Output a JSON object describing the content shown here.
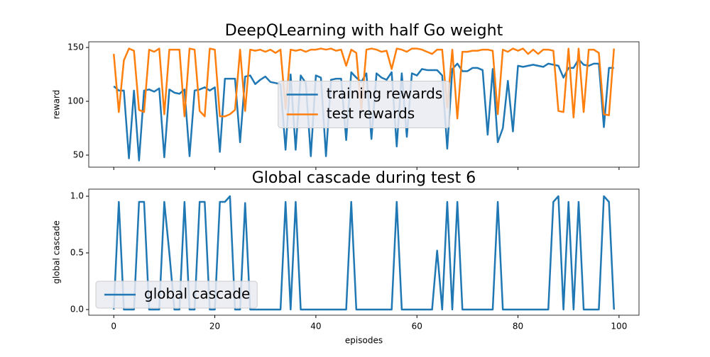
{
  "chart_data": [
    {
      "type": "line",
      "title": "DeepQLearning with half Go weight",
      "y_label": "reward",
      "x": [
        0,
        1,
        2,
        3,
        4,
        5,
        6,
        7,
        8,
        9,
        10,
        11,
        12,
        13,
        14,
        15,
        16,
        17,
        18,
        19,
        20,
        21,
        22,
        23,
        24,
        25,
        26,
        27,
        28,
        29,
        30,
        31,
        32,
        33,
        34,
        35,
        36,
        37,
        38,
        39,
        40,
        41,
        42,
        43,
        44,
        45,
        46,
        47,
        48,
        49,
        50,
        51,
        52,
        53,
        54,
        55,
        56,
        57,
        58,
        59,
        60,
        61,
        62,
        63,
        64,
        65,
        66,
        67,
        68,
        69,
        70,
        71,
        72,
        73,
        74,
        75,
        76,
        77,
        78,
        79,
        80,
        81,
        82,
        83,
        84,
        85,
        86,
        87,
        88,
        89,
        90,
        91,
        92,
        93,
        94,
        95,
        96,
        97,
        98,
        99
      ],
      "series": [
        {
          "name": "training rewards",
          "color": "#1f77b4",
          "values": [
            114,
            110,
            110,
            47,
            110,
            45,
            110,
            111,
            109,
            112,
            48,
            111,
            108,
            107,
            111,
            49,
            110,
            111,
            113,
            110,
            113,
            53,
            121,
            121,
            121,
            62,
            123,
            124,
            116,
            120,
            123,
            118,
            117,
            116,
            55,
            125,
            55,
            124,
            117,
            49,
            124,
            122,
            49,
            120,
            121,
            121,
            64,
            127,
            122,
            118,
            126,
            65,
            126,
            122,
            120,
            127,
            58,
            126,
            67,
            126,
            124,
            130,
            129,
            129,
            129,
            124,
            56,
            130,
            135,
            128,
            128,
            131,
            131,
            129,
            69,
            130,
            62,
            75,
            119,
            72,
            133,
            132,
            133,
            134,
            133,
            132,
            135,
            134,
            133,
            122,
            131,
            131,
            139,
            134,
            133,
            135,
            135,
            76,
            131,
            131
          ]
        },
        {
          "name": "test rewards",
          "color": "#ff7f0e",
          "values": [
            144,
            90,
            138,
            149,
            147,
            92,
            90,
            148,
            146,
            149,
            88,
            148,
            148,
            148,
            86,
            149,
            148,
            91,
            86,
            149,
            148,
            86,
            86,
            88,
            92,
            148,
            91,
            148,
            147,
            148,
            146,
            148,
            145,
            148,
            93,
            148,
            147,
            148,
            146,
            148,
            148,
            149,
            148,
            149,
            147,
            148,
            133,
            148,
            145,
            92,
            148,
            149,
            148,
            146,
            147,
            130,
            149,
            148,
            146,
            149,
            149,
            148,
            146,
            144,
            148,
            148,
            94,
            148,
            84,
            146,
            146,
            147,
            147,
            148,
            148,
            147,
            88,
            148,
            146,
            149,
            147,
            149,
            144,
            148,
            144,
            148,
            148,
            147,
            91,
            90,
            149,
            85,
            149,
            90,
            148,
            148,
            145,
            88,
            87,
            149
          ]
        }
      ],
      "xlim": [
        -4.95,
        103.95
      ],
      "xticks": [
        0,
        20,
        40,
        60,
        80,
        100
      ],
      "xticklabels": false,
      "ylim": [
        38.8,
        155.3
      ],
      "yticks": [
        50,
        100,
        150
      ],
      "legend": "center",
      "legend_size": 20
    },
    {
      "type": "line",
      "title": "Global cascade during test 6",
      "x_label": "episodes",
      "y_label": "global cascade",
      "x": [
        0,
        1,
        2,
        3,
        4,
        5,
        6,
        7,
        8,
        9,
        10,
        11,
        12,
        13,
        14,
        15,
        16,
        17,
        18,
        19,
        20,
        21,
        22,
        23,
        24,
        25,
        26,
        27,
        28,
        29,
        30,
        31,
        32,
        33,
        34,
        35,
        36,
        37,
        38,
        39,
        40,
        41,
        42,
        43,
        44,
        45,
        46,
        47,
        48,
        49,
        50,
        51,
        52,
        53,
        54,
        55,
        56,
        57,
        58,
        59,
        60,
        61,
        62,
        63,
        64,
        65,
        66,
        67,
        68,
        69,
        70,
        71,
        72,
        73,
        74,
        75,
        76,
        77,
        78,
        79,
        80,
        81,
        82,
        83,
        84,
        85,
        86,
        87,
        88,
        89,
        90,
        91,
        92,
        93,
        94,
        95,
        96,
        97,
        98,
        99
      ],
      "series": [
        {
          "name": "global cascade",
          "color": "#1f77b4",
          "values": [
            0,
            0.95,
            0,
            0,
            0,
            0.95,
            0.95,
            0,
            0,
            0,
            0.95,
            0.5,
            0,
            0,
            0.95,
            0,
            0,
            0.95,
            0.95,
            0,
            0,
            0.95,
            0.95,
            1.0,
            0,
            0,
            0.94,
            0,
            0,
            0,
            0,
            0,
            0,
            0,
            0.95,
            0,
            0.95,
            0,
            0,
            0,
            0,
            0,
            0,
            0,
            0,
            0,
            0,
            0.95,
            0,
            0,
            0,
            0,
            0,
            0,
            0,
            0,
            0.95,
            0,
            0,
            0,
            0,
            0,
            0,
            0,
            0.52,
            0,
            0.95,
            0,
            0.95,
            0,
            0,
            0,
            0,
            0,
            0,
            0,
            0.95,
            0,
            0,
            0,
            0,
            0,
            0,
            0,
            0,
            0,
            0,
            0.95,
            1.0,
            0,
            0.95,
            0,
            0.95,
            0,
            0,
            0,
            0,
            1.0,
            0.95,
            0
          ]
        }
      ],
      "xlim": [
        -4.95,
        103.95
      ],
      "xticks": [
        0,
        20,
        40,
        60,
        80,
        100
      ],
      "xticklabels": true,
      "ylim": [
        -0.05,
        1.0625
      ],
      "yticks": [
        {
          "value": 0,
          "label": "0.0"
        },
        0.5,
        {
          "value": 1,
          "label": "1.0"
        }
      ],
      "legend": "lower left",
      "legend_size": 20
    }
  ]
}
